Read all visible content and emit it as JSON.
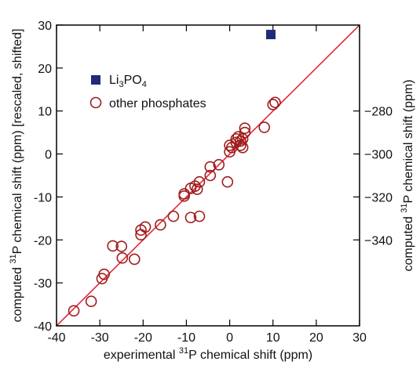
{
  "chart_data": {
    "type": "scatter",
    "xlabel": {
      "pre": "experimental ",
      "sup": "31",
      "post": "P chemical shift (ppm)"
    },
    "ylabel_left": {
      "pre": "computed ",
      "sup": "31",
      "post": "P chemical shift (ppm) [rescaled, shifted]"
    },
    "ylabel_right": {
      "pre": "computed ",
      "sup": "31",
      "post": "P chemical shift (ppm)"
    },
    "xlim": [
      -40,
      30
    ],
    "ylim": [
      -40,
      30
    ],
    "x_ticks": [
      -40,
      -30,
      -20,
      -10,
      0,
      10,
      20,
      30
    ],
    "y_ticks_left": [
      -40,
      -30,
      -20,
      -10,
      0,
      10,
      20,
      30
    ],
    "y_ticks_right": [
      -340,
      -320,
      -300,
      -280
    ],
    "right_axis_map": {
      "left_value_at_minus_300": 0,
      "left_units_per_right_unit": 0.5
    },
    "legend_position": "upper-left",
    "colors": {
      "line": "#e0283c",
      "li3po4": "#1f2a78",
      "other": "#a01c1c",
      "frame": "#000000"
    },
    "fit_line": {
      "x": [
        -40,
        30
      ],
      "y": [
        -40,
        30
      ]
    },
    "series": [
      {
        "name": "Li3PO4",
        "legend": {
          "base": "Li",
          "sub1": "3",
          "mid": "PO",
          "sub2": "4"
        },
        "marker": "filled-square",
        "points": [
          [
            9.5,
            27.8
          ]
        ]
      },
      {
        "name": "other phosphates",
        "marker": "open-circle",
        "points": [
          [
            -36,
            -36.5
          ],
          [
            -32,
            -34.3
          ],
          [
            -29.5,
            -29
          ],
          [
            -29,
            -28
          ],
          [
            -27,
            -21.4
          ],
          [
            -25,
            -21.5
          ],
          [
            -24.8,
            -24.2
          ],
          [
            -22,
            -24.5
          ],
          [
            -20.5,
            -18.8
          ],
          [
            -20.5,
            -17.7
          ],
          [
            -19.5,
            -17
          ],
          [
            -16,
            -16.5
          ],
          [
            -13,
            -14.5
          ],
          [
            -10.5,
            -9.3
          ],
          [
            -10.5,
            -9.8
          ],
          [
            -9,
            -14.8
          ],
          [
            -9,
            -8
          ],
          [
            -8,
            -7.5
          ],
          [
            -7.5,
            -8.2
          ],
          [
            -7,
            -14.5
          ],
          [
            -7,
            -6.5
          ],
          [
            -4.5,
            -5
          ],
          [
            -4.5,
            -3
          ],
          [
            -2.5,
            -2.5
          ],
          [
            -0.5,
            -6.5
          ],
          [
            0,
            0.5
          ],
          [
            0,
            2
          ],
          [
            0.5,
            1.5
          ],
          [
            1.5,
            2.7
          ],
          [
            1.5,
            3.5
          ],
          [
            2,
            4
          ],
          [
            2.5,
            3
          ],
          [
            2.5,
            2
          ],
          [
            3,
            1.5
          ],
          [
            3,
            3.5
          ],
          [
            3.5,
            5
          ],
          [
            3.5,
            6
          ],
          [
            8,
            6.2
          ],
          [
            10,
            11.5
          ],
          [
            10.5,
            12
          ]
        ]
      }
    ]
  }
}
